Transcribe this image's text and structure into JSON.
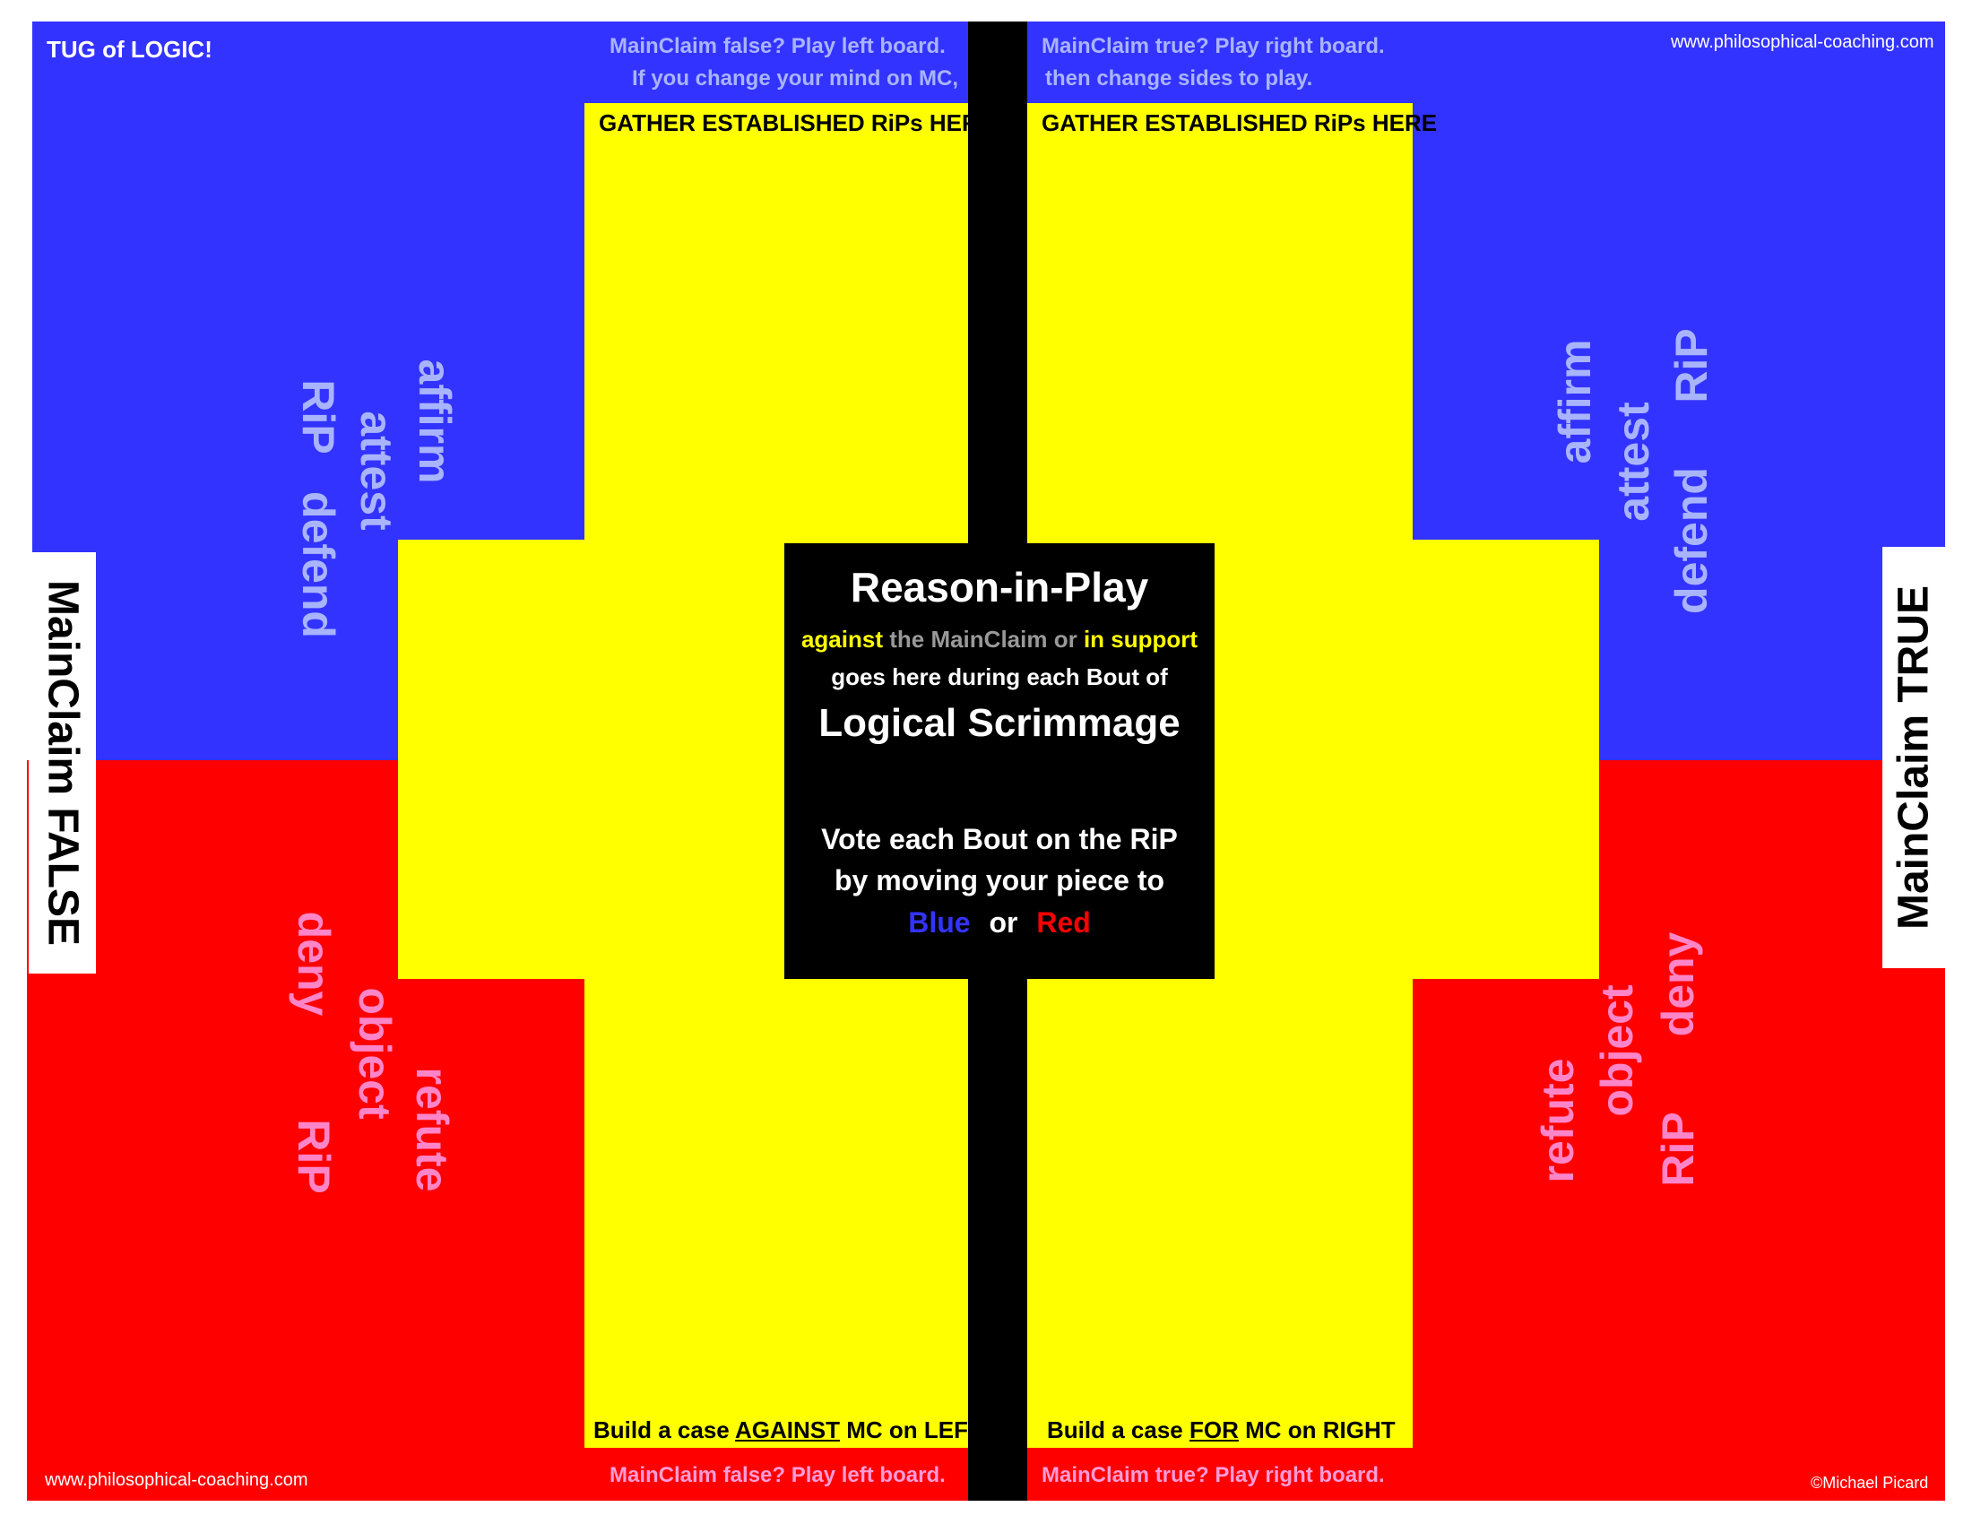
{
  "header": {
    "title": "TUG of LOGIC!",
    "website": "www.philosophical-coaching.com",
    "left_line1": "MainClaim false?  Play left board.",
    "left_line2": "If you change your mind on MC,",
    "right_line1": "MainClaim true?  Play right board.",
    "right_line2": "then change sides to play."
  },
  "gather_left": "GATHER ESTABLISHED RiPs HERE",
  "gather_right": "GATHER ESTABLISHED RiPs HERE",
  "left_board": {
    "tab": "MainClaim FALSE",
    "blue_words": [
      "RiP",
      "attest",
      "affirm",
      "defend"
    ],
    "red_words": [
      "deny",
      "object",
      "refute",
      "RiP"
    ]
  },
  "right_board": {
    "tab": "MainClaim TRUE",
    "blue_words": [
      "affirm",
      "attest",
      "defend",
      "RiP"
    ],
    "red_words": [
      "refute",
      "object",
      "deny",
      "RiP"
    ]
  },
  "center": {
    "title": "Reason-in-Play",
    "against": "against",
    "the_mainclaim_or": "the MainClaim or",
    "in_support": "in support",
    "goes_here": "goes here during each Bout of",
    "subtitle": "Logical Scrimmage",
    "vote_line1": "Vote each Bout on the RiP",
    "vote_line2": "by moving your piece to",
    "blue": "Blue",
    "or": "or",
    "red": "Red"
  },
  "footer": {
    "build_left_prefix": "Build a case",
    "build_left_emph": "AGAINST",
    "build_left_suffix": "MC on LEFT",
    "build_right_prefix": "Build a case",
    "build_right_emph": "FOR",
    "build_right_suffix": "MC on RIGHT",
    "left_play": "MainClaim false?  Play left board.",
    "right_play": "MainClaim true?  Play right board.",
    "website": "www.philosophical-coaching.com",
    "copyright": "©Michael Picard"
  },
  "colors": {
    "blue": "#3333ff",
    "red": "#ff0000",
    "yellow": "#ffff00",
    "black": "#000000"
  }
}
